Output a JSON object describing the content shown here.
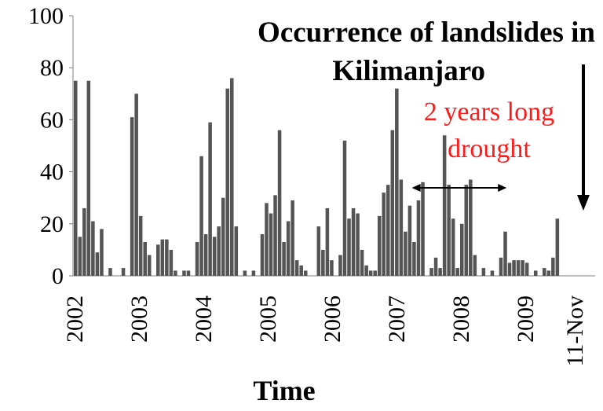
{
  "chart_data": {
    "type": "bar",
    "title_lines": [
      "Occurrence of landslides in",
      "Kilimanjaro"
    ],
    "xlabel": "Time",
    "ylabel": "",
    "ylim": [
      0,
      100
    ],
    "yticks": [
      0,
      20,
      40,
      60,
      80,
      100
    ],
    "x_ticks": [
      "2002",
      "2003",
      "2004",
      "2005",
      "2006",
      "2007",
      "2008",
      "2009",
      "11-Nov"
    ],
    "x_range_months": [
      0,
      119
    ],
    "bar_color": "#555555",
    "annotation": {
      "lines": [
        "2 years long",
        "drought"
      ],
      "color": "#ff1a1a",
      "span_months": [
        75,
        99
      ]
    },
    "arrow_target_month": 119,
    "series": [
      {
        "values": [
          [
            0,
            75
          ],
          [
            1,
            15
          ],
          [
            2,
            26
          ],
          [
            3,
            75
          ],
          [
            4,
            21
          ],
          [
            5,
            9
          ],
          [
            6,
            18
          ],
          [
            8,
            3
          ],
          [
            11,
            3
          ],
          [
            13,
            61
          ],
          [
            14,
            70
          ],
          [
            15,
            23
          ],
          [
            16,
            13
          ],
          [
            17,
            8
          ],
          [
            19,
            12
          ],
          [
            20,
            14
          ],
          [
            21,
            14
          ],
          [
            22,
            10
          ],
          [
            23,
            2
          ],
          [
            25,
            2
          ],
          [
            26,
            2
          ],
          [
            28,
            13
          ],
          [
            29,
            46
          ],
          [
            30,
            16
          ],
          [
            31,
            59
          ],
          [
            32,
            15
          ],
          [
            33,
            19
          ],
          [
            34,
            30
          ],
          [
            35,
            72
          ],
          [
            36,
            76
          ],
          [
            37,
            19
          ],
          [
            39,
            2
          ],
          [
            41,
            2
          ],
          [
            43,
            16
          ],
          [
            44,
            28
          ],
          [
            45,
            24
          ],
          [
            46,
            31
          ],
          [
            47,
            56
          ],
          [
            48,
            13
          ],
          [
            49,
            21
          ],
          [
            50,
            29
          ],
          [
            51,
            6
          ],
          [
            52,
            4
          ],
          [
            53,
            2
          ],
          [
            56,
            19
          ],
          [
            57,
            10
          ],
          [
            58,
            26
          ],
          [
            59,
            6
          ],
          [
            61,
            8
          ],
          [
            62,
            52
          ],
          [
            63,
            22
          ],
          [
            64,
            26
          ],
          [
            65,
            24
          ],
          [
            66,
            10
          ],
          [
            67,
            4
          ],
          [
            68,
            2
          ],
          [
            69,
            2
          ],
          [
            70,
            23
          ],
          [
            71,
            32
          ],
          [
            72,
            35
          ],
          [
            73,
            56
          ],
          [
            74,
            72
          ],
          [
            75,
            37
          ],
          [
            76,
            17
          ],
          [
            77,
            27
          ],
          [
            78,
            13
          ],
          [
            79,
            29
          ],
          [
            80,
            36
          ],
          [
            82,
            3
          ],
          [
            83,
            7
          ],
          [
            84,
            3
          ],
          [
            85,
            54
          ],
          [
            86,
            35
          ],
          [
            87,
            22
          ],
          [
            88,
            3
          ],
          [
            89,
            20
          ],
          [
            90,
            35
          ],
          [
            91,
            37
          ],
          [
            92,
            8
          ],
          [
            94,
            3
          ],
          [
            96,
            2
          ],
          [
            98,
            7
          ],
          [
            99,
            17
          ],
          [
            100,
            5
          ],
          [
            101,
            6
          ],
          [
            102,
            6
          ],
          [
            103,
            6
          ],
          [
            104,
            5
          ],
          [
            106,
            2
          ],
          [
            108,
            3
          ],
          [
            109,
            2
          ],
          [
            110,
            7
          ],
          [
            111,
            22
          ]
        ]
      }
    ]
  }
}
